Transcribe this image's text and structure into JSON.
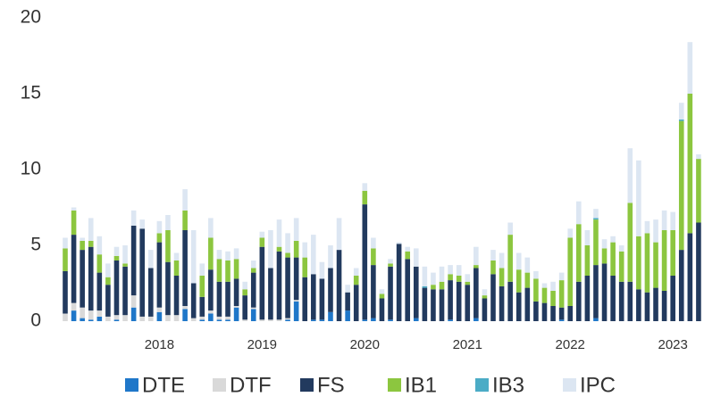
{
  "chart_data": {
    "type": "stacked_bar",
    "categories": [
      null,
      null,
      null,
      null,
      null,
      null,
      null,
      null,
      null,
      null,
      null,
      "2018",
      null,
      null,
      null,
      null,
      null,
      null,
      null,
      null,
      null,
      null,
      null,
      "2019",
      null,
      null,
      null,
      null,
      null,
      null,
      null,
      null,
      null,
      null,
      null,
      "2020",
      null,
      null,
      null,
      null,
      null,
      null,
      null,
      null,
      null,
      null,
      null,
      "2021",
      null,
      null,
      null,
      null,
      null,
      null,
      null,
      null,
      null,
      null,
      null,
      "2022",
      null,
      null,
      null,
      null,
      null,
      null,
      null,
      null,
      null,
      null,
      null,
      "2023",
      null,
      null,
      null
    ],
    "series": [
      {
        "name": "DTE",
        "color": "#1f77c9",
        "values": [
          0,
          0.7,
          0.2,
          0.1,
          0.3,
          0,
          0.1,
          0,
          0.9,
          0,
          0,
          0.6,
          0,
          0,
          0.8,
          0,
          0.1,
          0.5,
          0.1,
          0.1,
          0.9,
          0,
          0.8,
          0,
          0,
          0,
          0.1,
          1.3,
          0,
          0.1,
          0.1,
          0.6,
          0,
          0.7,
          0,
          0.1,
          0.2,
          0,
          0.1,
          0,
          0,
          0.2,
          0,
          0,
          0,
          0.1,
          0,
          0,
          0.2,
          0,
          0,
          0,
          0,
          0,
          0,
          0,
          0,
          0,
          0.1,
          0,
          0,
          0,
          0.2,
          0,
          0,
          0,
          0,
          0,
          0,
          0,
          0,
          0,
          0,
          0,
          0
        ]
      },
      {
        "name": "DTF",
        "color": "#d9d9d9",
        "values": [
          0.5,
          0.5,
          0.7,
          0.6,
          0.4,
          0.3,
          0.3,
          0.4,
          0.8,
          0.3,
          0.3,
          0.3,
          0.4,
          0.4,
          0.2,
          0.2,
          0.2,
          0.2,
          0.2,
          0.2,
          0.1,
          0.1,
          0.1,
          0.1,
          0.1,
          0.1,
          0.1,
          0.1,
          0,
          0,
          0,
          0,
          0,
          0,
          0,
          0,
          0,
          0,
          0,
          0,
          0,
          0,
          0,
          0,
          0,
          0,
          0,
          0,
          0,
          0,
          0,
          0,
          0,
          0,
          0,
          0,
          0,
          0,
          0,
          0,
          0,
          0,
          0,
          0,
          0,
          0,
          0,
          0,
          0,
          0,
          0,
          0,
          0,
          0,
          0
        ]
      },
      {
        "name": "FS",
        "color": "#223a5e",
        "values": [
          2.8,
          4.5,
          3.8,
          4.2,
          2.5,
          2.1,
          3.6,
          3.2,
          4.6,
          5.8,
          3.2,
          4.3,
          3.5,
          2.6,
          5.0,
          2.3,
          1.3,
          2.7,
          2.3,
          2.3,
          1.8,
          1.6,
          2.3,
          4.8,
          3.4,
          4.5,
          4.0,
          2.8,
          2.9,
          3.0,
          2.7,
          2.9,
          4.7,
          1.2,
          2.4,
          7.6,
          3.5,
          1.5,
          3.5,
          5.1,
          4.1,
          3.4,
          2.2,
          2.1,
          2.1,
          2.6,
          2.6,
          2.4,
          3.3,
          1.5,
          3.1,
          2.3,
          2.6,
          1.9,
          2.2,
          1.3,
          1.2,
          1.0,
          0.8,
          1.0,
          2.6,
          3.0,
          3.5,
          3.8,
          3.0,
          2.6,
          2.6,
          2.1,
          1.9,
          2.2,
          2.0,
          3.0,
          4.7,
          5.8,
          6.5
        ]
      },
      {
        "name": "IB1",
        "color": "#8cc63f",
        "values": [
          1.5,
          1.6,
          0.6,
          0.4,
          1.2,
          0.5,
          0.3,
          0.2,
          0,
          0,
          0,
          0.6,
          2.1,
          1.0,
          1.3,
          0,
          1.4,
          2.1,
          1.5,
          1.4,
          1.3,
          0.4,
          0.3,
          0.6,
          0,
          0.3,
          0.3,
          1.1,
          1.3,
          0,
          0,
          0,
          0,
          0,
          0.6,
          0.9,
          1.1,
          0.3,
          0.2,
          0,
          0.5,
          0,
          0,
          0.3,
          0.5,
          0.4,
          0.4,
          0.2,
          0.2,
          0.2,
          0.9,
          1.2,
          3.1,
          1.5,
          1.0,
          1.5,
          1.0,
          1.0,
          1.8,
          4.5,
          3.8,
          2.0,
          3.0,
          1.0,
          2.2,
          2.0,
          5.2,
          3.5,
          3.9,
          3.0,
          4.0,
          3.0,
          8.5,
          9.2,
          4.2
        ]
      },
      {
        "name": "IB3",
        "color": "#4bacc6",
        "values": [
          0,
          0,
          0,
          0,
          0,
          0,
          0,
          0,
          0,
          0,
          0,
          0,
          0,
          0,
          0,
          0,
          0,
          0,
          0,
          0,
          0,
          0,
          0,
          0,
          0,
          0,
          0,
          0,
          0,
          0,
          0,
          0,
          0,
          0,
          0,
          0,
          0,
          0,
          0,
          0,
          0,
          0,
          0.1,
          0,
          0,
          0,
          0,
          0,
          0,
          0,
          0,
          0,
          0,
          0,
          0,
          0,
          0,
          0,
          0,
          0,
          0,
          0,
          0.1,
          0,
          0,
          0,
          0,
          0,
          0,
          0,
          0,
          0,
          0.1,
          0,
          0
        ]
      },
      {
        "name": "IPC",
        "color": "#dce6f2",
        "values": [
          0.7,
          0.2,
          0.2,
          1.5,
          1.2,
          0.9,
          0.6,
          1.2,
          1.0,
          0.6,
          1.2,
          0.8,
          1.0,
          0.5,
          1.4,
          3.5,
          0.8,
          1.3,
          0.6,
          0.6,
          0.7,
          0.5,
          0.5,
          0.4,
          2.5,
          1.8,
          1.3,
          1.5,
          1.0,
          2.6,
          1.1,
          1.5,
          2.1,
          0.5,
          0.5,
          0.5,
          0.7,
          0.3,
          0.3,
          0.1,
          0.3,
          1.2,
          1.3,
          0.8,
          1.0,
          0.6,
          0.7,
          0.5,
          1.2,
          0.4,
          0.7,
          1.0,
          0.8,
          1.1,
          1.0,
          0.5,
          0.3,
          0.6,
          0.5,
          0.6,
          1.5,
          1.0,
          0.6,
          0.6,
          0.4,
          0.4,
          3.6,
          5.0,
          0.8,
          1.5,
          1.3,
          1.2,
          1.1,
          3.4,
          0.3
        ]
      }
    ],
    "ylim": [
      0,
      20
    ],
    "yticks": [
      0,
      5,
      10,
      15,
      20
    ],
    "grid": false,
    "legend": "bottom"
  }
}
